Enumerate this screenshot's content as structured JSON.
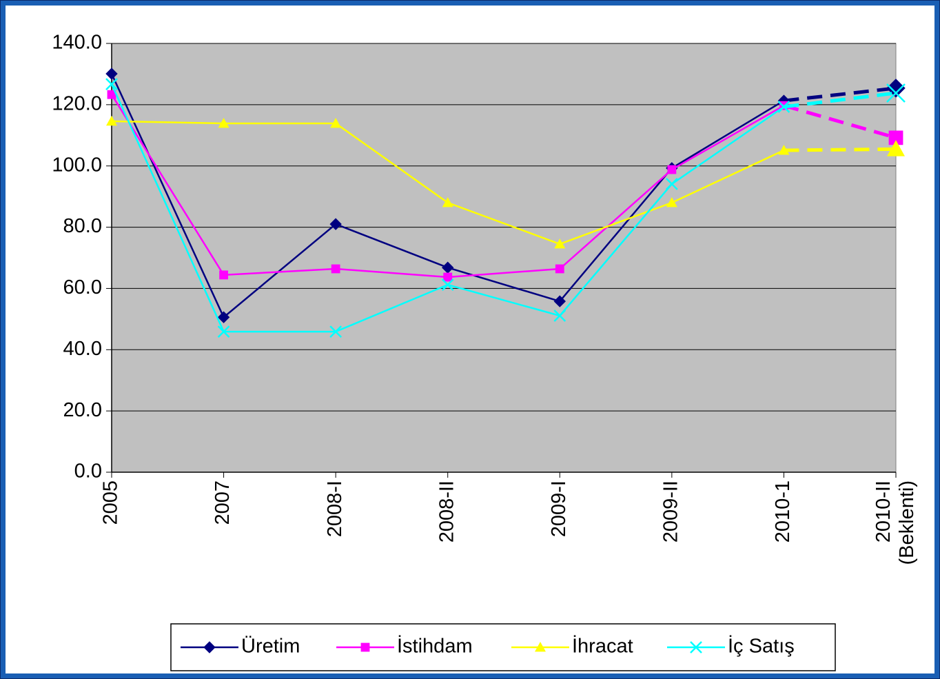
{
  "chart_data": {
    "type": "line",
    "categories": [
      "2005",
      "2007",
      "2008-I",
      "2008-II",
      "2009-I",
      "2009-II",
      "2010-1",
      "2010-II (Beklenti)"
    ],
    "series": [
      {
        "name": "Üretim",
        "color": "#000080",
        "marker": "diamond",
        "values": [
          130.1,
          50.6,
          81.0,
          66.8,
          55.8,
          99.3,
          121.3,
          125.4
        ]
      },
      {
        "name": "İstihdam",
        "color": "#ff00ff",
        "marker": "square",
        "values": [
          123.3,
          64.4,
          66.4,
          63.7,
          66.4,
          98.8,
          119.7,
          109.2
        ]
      },
      {
        "name": "İhracat",
        "color": "#ffff00",
        "marker": "triangle",
        "values": [
          114.6,
          113.9,
          113.9,
          88.0,
          74.5,
          88.0,
          105.1,
          105.5
        ]
      },
      {
        "name": "İç Satış",
        "color": "#00ffff",
        "marker": "x",
        "values": [
          126.7,
          45.9,
          45.9,
          61.2,
          51.1,
          94.1,
          119.3,
          123.8
        ]
      }
    ],
    "ylim": [
      0,
      140
    ],
    "yticks": [
      {
        "value": 0,
        "label": "0.0"
      },
      {
        "value": 20,
        "label": "20.0"
      },
      {
        "value": 40,
        "label": "40.0"
      },
      {
        "value": 60,
        "label": "60.0"
      },
      {
        "value": 80,
        "label": "80.0"
      },
      {
        "value": 100,
        "label": "100.0"
      },
      {
        "value": 120,
        "label": "120.0"
      },
      {
        "value": 140,
        "label": "140.0"
      }
    ],
    "grid": true,
    "legend": "bottom"
  }
}
